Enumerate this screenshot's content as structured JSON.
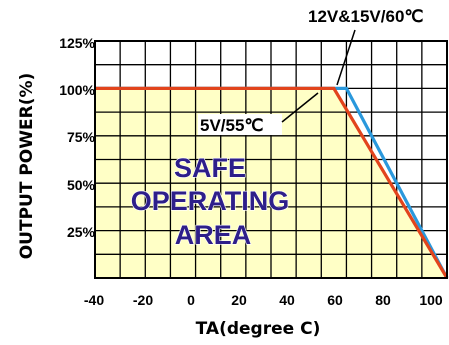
{
  "chart_data": {
    "type": "line",
    "xlabel": "TA(degree C)",
    "ylabel": "OUTPUT POWER(%)",
    "xlim": [
      -40,
      100
    ],
    "ylim": [
      0,
      125
    ],
    "x_ticks": [
      "-40",
      "-20",
      "0",
      "20",
      "40",
      "60",
      "80",
      "100"
    ],
    "y_ticks": [
      "125%",
      "100%",
      "75%",
      "50%",
      "25%"
    ],
    "grid": true,
    "region_fill": "#ffffc6",
    "series": [
      {
        "color": "#e2441c",
        "x": [
          -40,
          55,
          100
        ],
        "y": [
          100,
          100,
          0
        ]
      },
      {
        "color": "#2a98dc",
        "x": [
          -40,
          60,
          100
        ],
        "y": [
          100,
          100,
          0
        ]
      }
    ],
    "annotations": [
      {
        "text": "12V&15V/60℃",
        "x": 60,
        "y": 100
      },
      {
        "text": "5V/55℃",
        "x": 55,
        "y": 100
      }
    ],
    "region_label": [
      "SAFE",
      "OPERATING",
      "AREA"
    ]
  }
}
